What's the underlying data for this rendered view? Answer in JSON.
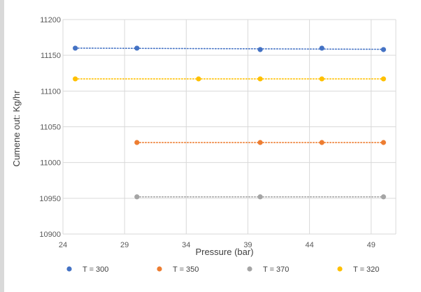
{
  "chart_data": {
    "type": "scatter",
    "title": "",
    "xlabel": "Pressure (bar)",
    "ylabel": "Cumene out: Kg/hr",
    "xlim": [
      24,
      51
    ],
    "ylim": [
      10900,
      11200
    ],
    "x_ticks": [
      24,
      29,
      34,
      39,
      44,
      49
    ],
    "y_ticks": [
      10900,
      10950,
      11000,
      11050,
      11100,
      11150,
      11200
    ],
    "x_tick_labels": [
      "24",
      "29",
      "34",
      "39",
      "44",
      "49"
    ],
    "y_tick_labels": [
      "10900",
      "10950",
      "11000",
      "11050",
      "11100",
      "11150",
      "11200"
    ],
    "grid": true,
    "legend_position": "bottom",
    "trendlines": true,
    "series": [
      {
        "name": "T = 300",
        "color": "#4472c4",
        "x": [
          25,
          30,
          40,
          45,
          50
        ],
        "y": [
          11160,
          11160,
          11158,
          11160,
          11158
        ]
      },
      {
        "name": "T = 350",
        "color": "#ed7d31",
        "x": [
          30,
          40,
          45,
          50
        ],
        "y": [
          11028,
          11028,
          11028,
          11028
        ]
      },
      {
        "name": "T = 370",
        "color": "#a5a5a5",
        "x": [
          30,
          40,
          50
        ],
        "y": [
          10952,
          10952,
          10952
        ]
      },
      {
        "name": "T = 320",
        "color": "#ffc000",
        "x": [
          25,
          35,
          40,
          45,
          50
        ],
        "y": [
          11117,
          11117,
          11117,
          11117,
          11117
        ]
      }
    ]
  }
}
